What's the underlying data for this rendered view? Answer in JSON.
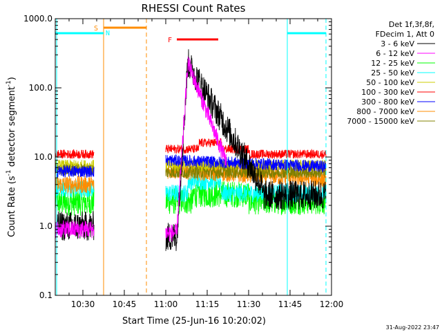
{
  "chart_data": {
    "type": "line",
    "title": "RHESSI Count Rates",
    "xlabel": "Start Time (25-Jun-16 10:20:02)",
    "ylabel_main": "Count Rate (s",
    "ylabel_sup1": "-1",
    "ylabel_mid": " detector segment",
    "ylabel_sup2": "-1",
    "ylabel_end": ")",
    "yscale": "log",
    "ylim": [
      0.1,
      1000
    ],
    "xlim_min": [
      20,
      120
    ],
    "x_ticks": [
      {
        "m": 30,
        "label": "10:30"
      },
      {
        "m": 45,
        "label": "10:45"
      },
      {
        "m": 60,
        "label": "11:00"
      },
      {
        "m": 75,
        "label": "11:15"
      },
      {
        "m": 90,
        "label": "11:30"
      },
      {
        "m": 105,
        "label": "11:45"
      },
      {
        "m": 120,
        "label": "12:00"
      }
    ],
    "y_ticks": [
      {
        "v": 1000,
        "label": "1000.0"
      },
      {
        "v": 100,
        "label": "100.0"
      },
      {
        "v": 10,
        "label": "10.0"
      },
      {
        "v": 1,
        "label": "1.0"
      },
      {
        "v": 0.1,
        "label": "0.1"
      }
    ],
    "legend_header": [
      "Det 1f,3f,8f,",
      "FDecim 1, Att 0"
    ],
    "legend_position": "right",
    "series": [
      {
        "name": "3 - 6 keV",
        "color": "#000000"
      },
      {
        "name": "6 - 12 keV",
        "color": "#ff00ff"
      },
      {
        "name": "12 - 25 keV",
        "color": "#00ff00"
      },
      {
        "name": "25 - 50 keV",
        "color": "#00ffff"
      },
      {
        "name": "50 - 100 keV",
        "color": "#cccc00"
      },
      {
        "name": "100 - 300 keV",
        "color": "#ff0000"
      },
      {
        "name": "300 - 800 keV",
        "color": "#0000ff"
      },
      {
        "name": "800 - 7000 keV",
        "color": "#ff8c00"
      },
      {
        "name": "7000 - 15000 keV",
        "color": "#808000"
      }
    ],
    "annotations": {
      "S": {
        "label": "S",
        "color": "#ff8c00",
        "start_min": 37.5,
        "end_min": 53
      },
      "N": {
        "label": "N",
        "color": "#00ffff",
        "bars": [
          [
            20,
            37.5
          ],
          [
            104,
            118
          ]
        ]
      },
      "F": {
        "label": "F",
        "color": "#ff0000",
        "start_min": 64,
        "end_min": 79
      },
      "saa_lines_min": [
        37.5,
        53
      ],
      "night_lines_min": [
        20.5,
        104,
        118
      ]
    }
  },
  "footer_date": "31-Aug-2022 23:47"
}
